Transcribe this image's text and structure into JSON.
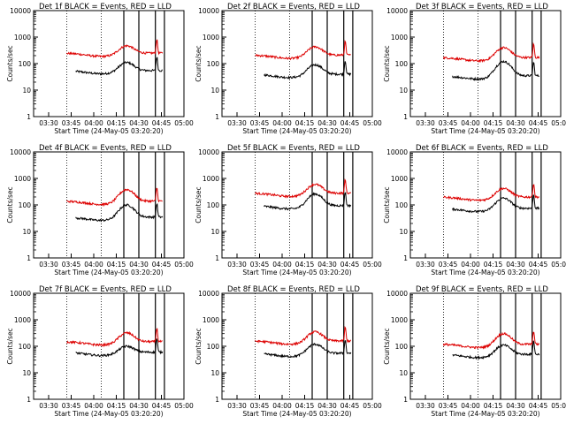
{
  "figure": {
    "background": "#ffffff",
    "colors": {
      "events": "#000000",
      "lld": "#dd0000",
      "axes": "#000000"
    }
  },
  "common": {
    "xlabel": "Start Time (24-May-05 03:20:20)",
    "ylabel": "Counts/sec",
    "xticks": [
      "03:30",
      "03:45",
      "04:00",
      "04:15",
      "04:30",
      "04:45",
      "05:00"
    ],
    "yticks": [
      "1",
      "10",
      "100",
      "1000",
      "10000"
    ],
    "ylim": [
      1,
      10000
    ],
    "yscale": "log",
    "xrange_minutes_after_0320": [
      0,
      100
    ]
  },
  "chart_data": [
    {
      "type": "line",
      "title": "Det 1f BLACK = Events, RED = LLD",
      "series": [
        {
          "name": "Events",
          "color": "#000000",
          "y_base": 55,
          "range": [
            28,
            86
          ]
        },
        {
          "name": "LLD",
          "color": "#dd0000",
          "y_base": 250,
          "range": [
            22,
            86
          ]
        }
      ],
      "vlines_dotted": [
        22,
        45
      ],
      "vlines_solid": [
        60,
        70,
        81,
        87
      ],
      "bump_peak": [
        110,
        470
      ]
    },
    {
      "type": "line",
      "title": "Det 2f BLACK = Events, RED = LLD",
      "series": [
        {
          "name": "Events",
          "color": "#000000",
          "y_base": 40,
          "range": [
            28,
            86
          ]
        },
        {
          "name": "LLD",
          "color": "#dd0000",
          "y_base": 210,
          "range": [
            22,
            86
          ]
        }
      ],
      "vlines_dotted": [
        22,
        45
      ],
      "vlines_solid": [
        60,
        70,
        81,
        87
      ],
      "bump_peak": [
        90,
        430
      ]
    },
    {
      "type": "line",
      "title": "Det 3f BLACK = Events, RED = LLD",
      "series": [
        {
          "name": "Events",
          "color": "#000000",
          "y_base": 35,
          "range": [
            28,
            86
          ]
        },
        {
          "name": "LLD",
          "color": "#dd0000",
          "y_base": 170,
          "range": [
            22,
            86
          ]
        }
      ],
      "vlines_dotted": [
        22,
        45
      ],
      "vlines_solid": [
        60,
        70,
        81,
        87
      ],
      "bump_peak": [
        120,
        400
      ]
    },
    {
      "type": "line",
      "title": "Det 4f BLACK = Events, RED = LLD",
      "series": [
        {
          "name": "Events",
          "color": "#000000",
          "y_base": 35,
          "range": [
            28,
            86
          ]
        },
        {
          "name": "LLD",
          "color": "#dd0000",
          "y_base": 140,
          "range": [
            22,
            86
          ]
        }
      ],
      "vlines_dotted": [
        22,
        45
      ],
      "vlines_solid": [
        60,
        70,
        81,
        87
      ],
      "bump_peak": [
        100,
        380
      ]
    },
    {
      "type": "line",
      "title": "Det 5f BLACK = Events, RED = LLD",
      "series": [
        {
          "name": "Events",
          "color": "#000000",
          "y_base": 95,
          "range": [
            28,
            86
          ]
        },
        {
          "name": "LLD",
          "color": "#dd0000",
          "y_base": 280,
          "range": [
            22,
            86
          ]
        }
      ],
      "vlines_dotted": [
        22,
        45
      ],
      "vlines_solid": [
        60,
        70,
        81,
        87
      ],
      "bump_peak": [
        260,
        600
      ]
    },
    {
      "type": "line",
      "title": "Det 6f BLACK = Events, RED = LLD",
      "series": [
        {
          "name": "Events",
          "color": "#000000",
          "y_base": 75,
          "range": [
            28,
            86
          ]
        },
        {
          "name": "LLD",
          "color": "#dd0000",
          "y_base": 200,
          "range": [
            22,
            86
          ]
        }
      ],
      "vlines_dotted": [
        22,
        45
      ],
      "vlines_solid": [
        60,
        70,
        81,
        87
      ],
      "bump_peak": [
        180,
        420
      ]
    },
    {
      "type": "line",
      "title": "Det 7f BLACK = Events, RED = LLD",
      "series": [
        {
          "name": "Events",
          "color": "#000000",
          "y_base": 60,
          "range": [
            28,
            86
          ]
        },
        {
          "name": "LLD",
          "color": "#dd0000",
          "y_base": 150,
          "range": [
            22,
            86
          ]
        }
      ],
      "vlines_dotted": [
        22,
        45
      ],
      "vlines_solid": [
        60,
        70,
        81,
        87
      ],
      "bump_peak": [
        100,
        320
      ]
    },
    {
      "type": "line",
      "title": "Det 8f BLACK = Events, RED = LLD",
      "series": [
        {
          "name": "Events",
          "color": "#000000",
          "y_base": 55,
          "range": [
            28,
            86
          ]
        },
        {
          "name": "LLD",
          "color": "#dd0000",
          "y_base": 160,
          "range": [
            22,
            86
          ]
        }
      ],
      "vlines_dotted": [
        22,
        45
      ],
      "vlines_solid": [
        60,
        70,
        81,
        87
      ],
      "bump_peak": [
        120,
        350
      ]
    },
    {
      "type": "line",
      "title": "Det 9f BLACK = Events, RED = LLD",
      "series": [
        {
          "name": "Events",
          "color": "#000000",
          "y_base": 50,
          "range": [
            28,
            86
          ]
        },
        {
          "name": "LLD",
          "color": "#dd0000",
          "y_base": 120,
          "range": [
            22,
            86
          ]
        }
      ],
      "vlines_dotted": [
        22,
        45
      ],
      "vlines_solid": [
        60,
        70,
        81,
        87
      ],
      "bump_peak": [
        110,
        300
      ]
    }
  ]
}
